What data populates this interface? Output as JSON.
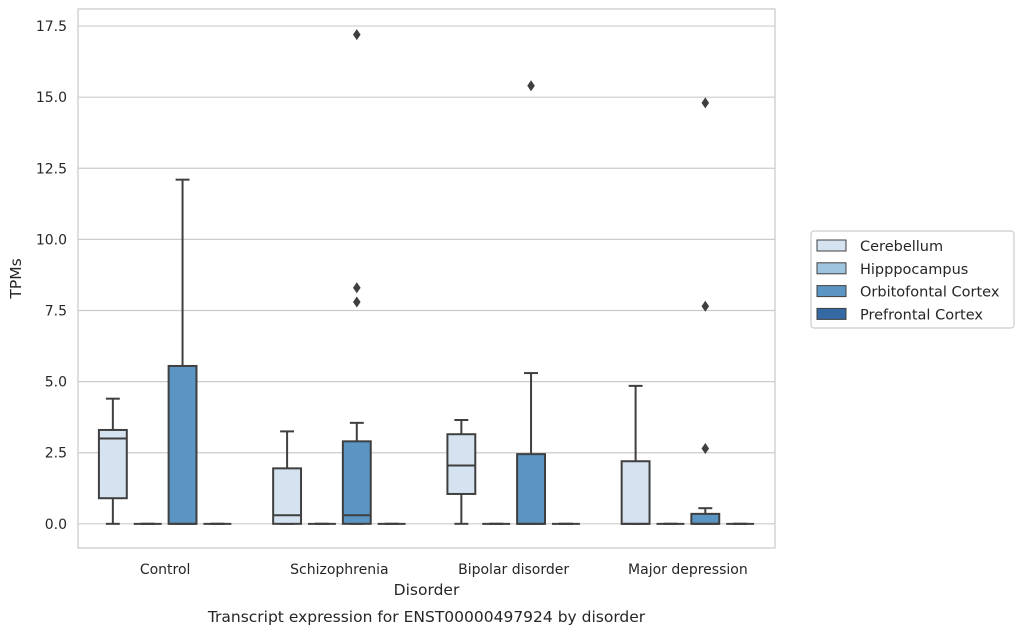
{
  "chart_data": {
    "type": "boxplot",
    "caption": "Transcript expression for ENST00000497924 by disorder",
    "xlabel": "Disorder",
    "ylabel": "TPMs",
    "ylim": [
      -0.85,
      18.1
    ],
    "yticks": [
      "0.0",
      "2.5",
      "5.0",
      "7.5",
      "10.0",
      "12.5",
      "15.0",
      "17.5"
    ],
    "grid": "horizontal",
    "legend_position": "right",
    "categories": [
      "Control",
      "Schizophrenia",
      "Bipolar disorder",
      "Major depression"
    ],
    "series": [
      {
        "name": "Cerebellum",
        "color": "#d5e3f1",
        "boxes": [
          {
            "min": 0,
            "q1": 0.9,
            "median": 3.0,
            "q3": 3.3,
            "max": 4.4,
            "outliers": []
          },
          {
            "min": 0,
            "q1": 0,
            "median": 0.3,
            "q3": 1.95,
            "max": 3.25,
            "outliers": []
          },
          {
            "min": 0,
            "q1": 1.05,
            "median": 2.05,
            "q3": 3.15,
            "max": 3.65,
            "outliers": []
          },
          {
            "min": 0,
            "q1": 0,
            "median": 0,
            "q3": 2.2,
            "max": 4.85,
            "outliers": []
          }
        ]
      },
      {
        "name": "Hipppocampus",
        "color": "#9fc4df",
        "boxes": [
          {
            "min": 0,
            "q1": 0,
            "median": 0,
            "q3": 0,
            "max": 0,
            "outliers": []
          },
          {
            "min": 0,
            "q1": 0,
            "median": 0,
            "q3": 0,
            "max": 0,
            "outliers": []
          },
          {
            "min": 0,
            "q1": 0,
            "median": 0,
            "q3": 0,
            "max": 0,
            "outliers": []
          },
          {
            "min": 0,
            "q1": 0,
            "median": 0,
            "q3": 0,
            "max": 0,
            "outliers": []
          }
        ]
      },
      {
        "name": "Orbitofontal Cortex",
        "color": "#5a95c3",
        "boxes": [
          {
            "min": 0,
            "q1": 0,
            "median": 0,
            "q3": 5.55,
            "max": 12.1,
            "outliers": []
          },
          {
            "min": 0,
            "q1": 0,
            "median": 0.3,
            "q3": 2.9,
            "max": 3.55,
            "outliers": [
              7.8,
              8.3,
              17.2
            ]
          },
          {
            "min": 0,
            "q1": 0,
            "median": 0,
            "q3": 2.45,
            "max": 5.3,
            "outliers": [
              15.4
            ]
          },
          {
            "min": 0,
            "q1": 0,
            "median": 0,
            "q3": 0.35,
            "max": 0.55,
            "outliers": [
              2.65,
              7.65,
              14.8
            ]
          }
        ]
      },
      {
        "name": "Prefrontal Cortex",
        "color": "#3569a4",
        "boxes": [
          {
            "min": 0,
            "q1": 0,
            "median": 0,
            "q3": 0,
            "max": 0,
            "outliers": []
          },
          {
            "min": 0,
            "q1": 0,
            "median": 0,
            "q3": 0,
            "max": 0,
            "outliers": []
          },
          {
            "min": 0,
            "q1": 0,
            "median": 0,
            "q3": 0,
            "max": 0,
            "outliers": []
          },
          {
            "min": 0,
            "q1": 0,
            "median": 0,
            "q3": 0,
            "max": 0,
            "outliers": []
          }
        ]
      }
    ]
  }
}
